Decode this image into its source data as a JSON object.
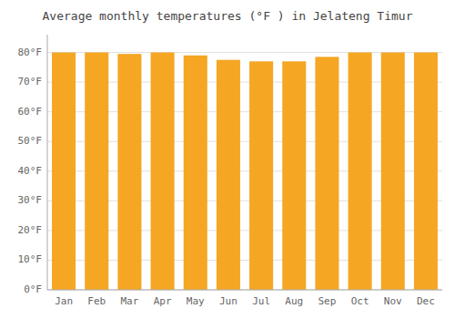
{
  "chart_data": {
    "type": "bar",
    "title": "Average monthly temperatures (°F ) in Jelateng Timur",
    "categories": [
      "Jan",
      "Feb",
      "Mar",
      "Apr",
      "May",
      "Jun",
      "Jul",
      "Aug",
      "Sep",
      "Oct",
      "Nov",
      "Dec"
    ],
    "values": [
      80,
      80,
      79.5,
      80,
      79,
      77.5,
      77,
      77,
      78.5,
      80,
      80,
      80
    ],
    "color": "#F5A623",
    "ylim": [
      0,
      86
    ],
    "yticks": [
      {
        "value": 0,
        "label": "0°F"
      },
      {
        "value": 10,
        "label": "10°F"
      },
      {
        "value": 20,
        "label": "20°F"
      },
      {
        "value": 30,
        "label": "30°F"
      },
      {
        "value": 40,
        "label": "40°F"
      },
      {
        "value": 50,
        "label": "50°F"
      },
      {
        "value": 60,
        "label": "60°F"
      },
      {
        "value": 70,
        "label": "70°F"
      },
      {
        "value": 80,
        "label": "80°F"
      }
    ],
    "grid": true
  }
}
